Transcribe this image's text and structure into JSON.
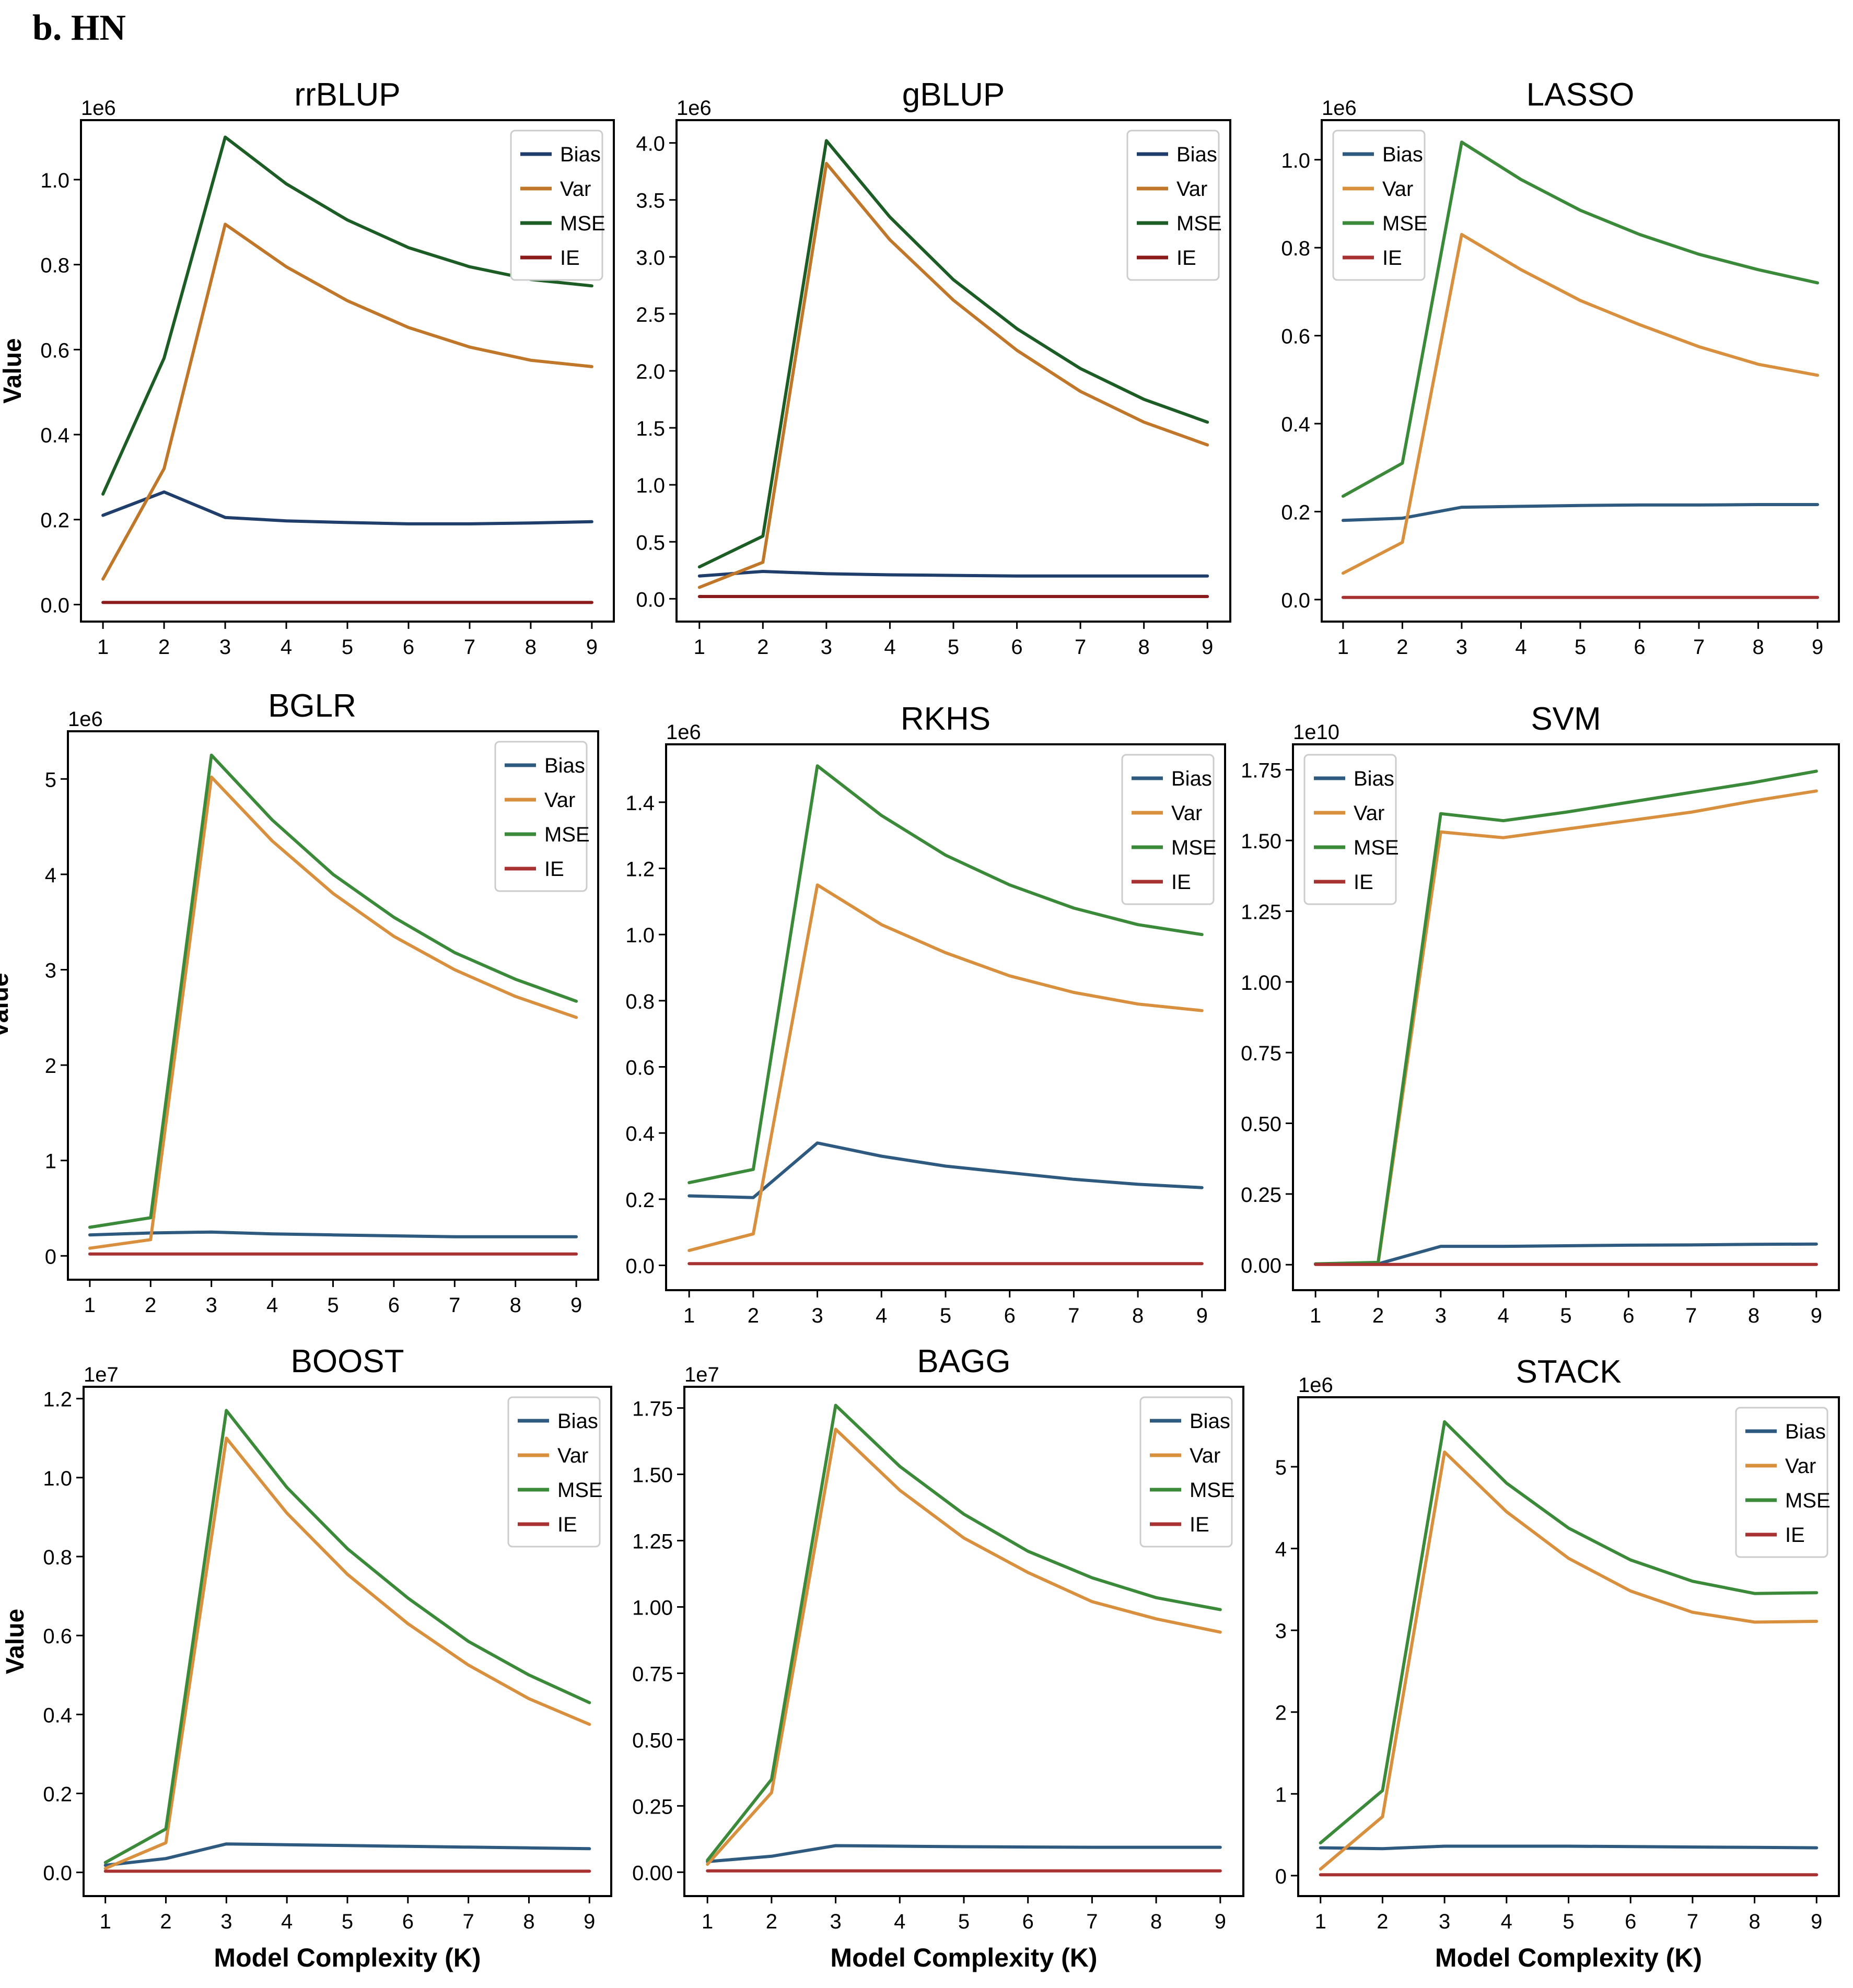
{
  "figure": {
    "label": "b. HN"
  },
  "chart_data": [
    {
      "type": "line",
      "title": "rrBLUP",
      "multiplier": "1e6",
      "ylabel": "Value",
      "xlabel": "",
      "x": [
        1,
        2,
        3,
        4,
        5,
        6,
        7,
        8,
        9
      ],
      "ylim": [
        -0.04,
        1.14
      ],
      "yticks": [
        0.0,
        0.2,
        0.4,
        0.6,
        0.8,
        1.0
      ],
      "legend": "top-right",
      "series": [
        {
          "name": "Bias",
          "color": "#1f3e6b",
          "values": [
            0.21,
            0.265,
            0.205,
            0.197,
            0.193,
            0.19,
            0.19,
            0.192,
            0.195
          ]
        },
        {
          "name": "Var",
          "color": "#c0772a",
          "values": [
            0.06,
            0.32,
            0.895,
            0.795,
            0.715,
            0.652,
            0.606,
            0.575,
            0.56
          ]
        },
        {
          "name": "MSE",
          "color": "#1c5c25",
          "values": [
            0.26,
            0.58,
            1.1,
            0.99,
            0.905,
            0.84,
            0.795,
            0.765,
            0.75
          ]
        },
        {
          "name": "IE",
          "color": "#8b1a1a",
          "values": [
            0.005,
            0.005,
            0.005,
            0.005,
            0.005,
            0.005,
            0.005,
            0.005,
            0.005
          ]
        }
      ]
    },
    {
      "type": "line",
      "title": "gBLUP",
      "multiplier": "1e6",
      "ylabel": "",
      "xlabel": "",
      "x": [
        1,
        2,
        3,
        4,
        5,
        6,
        7,
        8,
        9
      ],
      "ylim": [
        -0.2,
        4.2
      ],
      "yticks": [
        0.0,
        0.5,
        1.0,
        1.5,
        2.0,
        2.5,
        3.0,
        3.5,
        4.0
      ],
      "legend": "top-right",
      "series": [
        {
          "name": "Bias",
          "color": "#1f3e6b",
          "values": [
            0.2,
            0.24,
            0.22,
            0.21,
            0.205,
            0.2,
            0.2,
            0.2,
            0.2
          ]
        },
        {
          "name": "Var",
          "color": "#c0772a",
          "values": [
            0.1,
            0.32,
            3.82,
            3.15,
            2.62,
            2.18,
            1.82,
            1.55,
            1.35
          ]
        },
        {
          "name": "MSE",
          "color": "#1c5c25",
          "values": [
            0.28,
            0.55,
            4.02,
            3.35,
            2.8,
            2.37,
            2.02,
            1.75,
            1.55
          ]
        },
        {
          "name": "IE",
          "color": "#8b1a1a",
          "values": [
            0.02,
            0.02,
            0.02,
            0.02,
            0.02,
            0.02,
            0.02,
            0.02,
            0.02
          ]
        }
      ]
    },
    {
      "type": "line",
      "title": "LASSO",
      "multiplier": "1e6",
      "ylabel": "",
      "xlabel": "",
      "x": [
        1,
        2,
        3,
        4,
        5,
        6,
        7,
        8,
        9
      ],
      "ylim": [
        -0.05,
        1.09
      ],
      "yticks": [
        0.0,
        0.2,
        0.4,
        0.6,
        0.8,
        1.0
      ],
      "legend": "top-left",
      "series": [
        {
          "name": "Bias",
          "color": "#2f5a80",
          "values": [
            0.18,
            0.185,
            0.21,
            0.212,
            0.214,
            0.215,
            0.215,
            0.216,
            0.216
          ]
        },
        {
          "name": "Var",
          "color": "#d9903e",
          "values": [
            0.06,
            0.13,
            0.83,
            0.75,
            0.68,
            0.625,
            0.575,
            0.535,
            0.51
          ]
        },
        {
          "name": "MSE",
          "color": "#3a8a3a",
          "values": [
            0.235,
            0.31,
            1.04,
            0.955,
            0.885,
            0.83,
            0.785,
            0.75,
            0.72
          ]
        },
        {
          "name": "IE",
          "color": "#a83232",
          "values": [
            0.005,
            0.005,
            0.005,
            0.005,
            0.005,
            0.005,
            0.005,
            0.005,
            0.005
          ]
        }
      ]
    },
    {
      "type": "line",
      "title": "BGLR",
      "multiplier": "1e6",
      "ylabel": "Value",
      "xlabel": "",
      "x": [
        1,
        2,
        3,
        4,
        5,
        6,
        7,
        8,
        9
      ],
      "ylim": [
        -0.25,
        5.5
      ],
      "yticks": [
        0,
        1,
        2,
        3,
        4,
        5
      ],
      "legend": "top-right",
      "series": [
        {
          "name": "Bias",
          "color": "#2f5a80",
          "values": [
            0.22,
            0.24,
            0.25,
            0.23,
            0.22,
            0.21,
            0.2,
            0.2,
            0.2
          ]
        },
        {
          "name": "Var",
          "color": "#d9903e",
          "values": [
            0.08,
            0.17,
            5.02,
            4.35,
            3.8,
            3.35,
            3.0,
            2.72,
            2.5
          ]
        },
        {
          "name": "MSE",
          "color": "#3a8a3a",
          "values": [
            0.3,
            0.4,
            5.25,
            4.57,
            4.0,
            3.55,
            3.18,
            2.9,
            2.67
          ]
        },
        {
          "name": "IE",
          "color": "#a83232",
          "values": [
            0.02,
            0.02,
            0.02,
            0.02,
            0.02,
            0.02,
            0.02,
            0.02,
            0.02
          ]
        }
      ]
    },
    {
      "type": "line",
      "title": "RKHS",
      "multiplier": "1e6",
      "ylabel": "",
      "xlabel": "",
      "x": [
        1,
        2,
        3,
        4,
        5,
        6,
        7,
        8,
        9
      ],
      "ylim": [
        -0.075,
        1.575
      ],
      "yticks": [
        0.0,
        0.2,
        0.4,
        0.6,
        0.8,
        1.0,
        1.2,
        1.4
      ],
      "legend": "top-right",
      "series": [
        {
          "name": "Bias",
          "color": "#2f5a80",
          "values": [
            0.21,
            0.205,
            0.37,
            0.33,
            0.3,
            0.28,
            0.26,
            0.245,
            0.235
          ]
        },
        {
          "name": "Var",
          "color": "#d9903e",
          "values": [
            0.045,
            0.095,
            1.15,
            1.03,
            0.945,
            0.875,
            0.825,
            0.79,
            0.77
          ]
        },
        {
          "name": "MSE",
          "color": "#3a8a3a",
          "values": [
            0.25,
            0.29,
            1.51,
            1.36,
            1.24,
            1.15,
            1.08,
            1.03,
            1.0
          ]
        },
        {
          "name": "IE",
          "color": "#a83232",
          "values": [
            0.005,
            0.005,
            0.005,
            0.005,
            0.005,
            0.005,
            0.005,
            0.005,
            0.005
          ]
        }
      ]
    },
    {
      "type": "line",
      "title": "SVM",
      "multiplier": "1e10",
      "ylabel": "",
      "xlabel": "",
      "x": [
        1,
        2,
        3,
        4,
        5,
        6,
        7,
        8,
        9
      ],
      "ylim": [
        -0.09,
        1.84
      ],
      "yticks": [
        0.0,
        0.25,
        0.5,
        0.75,
        1.0,
        1.25,
        1.5,
        1.75
      ],
      "legend": "top-left",
      "series": [
        {
          "name": "Bias",
          "color": "#2f5a80",
          "values": [
            0.003,
            0.003,
            0.065,
            0.065,
            0.067,
            0.069,
            0.07,
            0.072,
            0.073
          ]
        },
        {
          "name": "Var",
          "color": "#d9903e",
          "values": [
            0.003,
            0.005,
            1.53,
            1.51,
            1.54,
            1.57,
            1.6,
            1.64,
            1.675
          ]
        },
        {
          "name": "MSE",
          "color": "#3a8a3a",
          "values": [
            0.003,
            0.008,
            1.595,
            1.57,
            1.6,
            1.635,
            1.67,
            1.705,
            1.745
          ]
        },
        {
          "name": "IE",
          "color": "#a83232",
          "values": [
            0.001,
            0.001,
            0.001,
            0.001,
            0.001,
            0.001,
            0.001,
            0.001,
            0.001
          ]
        }
      ]
    },
    {
      "type": "line",
      "title": "BOOST",
      "multiplier": "1e7",
      "ylabel": "Value",
      "xlabel": "Model Complexity (K)",
      "x": [
        1,
        2,
        3,
        4,
        5,
        6,
        7,
        8,
        9
      ],
      "ylim": [
        -0.06,
        1.23
      ],
      "yticks": [
        0.0,
        0.2,
        0.4,
        0.6,
        0.8,
        1.0,
        1.2
      ],
      "legend": "top-right",
      "series": [
        {
          "name": "Bias",
          "color": "#2f5a80",
          "values": [
            0.018,
            0.035,
            0.072,
            0.07,
            0.068,
            0.066,
            0.064,
            0.062,
            0.06
          ]
        },
        {
          "name": "Var",
          "color": "#d9903e",
          "values": [
            0.01,
            0.075,
            1.1,
            0.91,
            0.755,
            0.63,
            0.525,
            0.44,
            0.375
          ]
        },
        {
          "name": "MSE",
          "color": "#3a8a3a",
          "values": [
            0.025,
            0.11,
            1.17,
            0.975,
            0.82,
            0.695,
            0.585,
            0.5,
            0.43
          ]
        },
        {
          "name": "IE",
          "color": "#a83232",
          "values": [
            0.003,
            0.003,
            0.003,
            0.003,
            0.003,
            0.003,
            0.003,
            0.003,
            0.003
          ]
        }
      ]
    },
    {
      "type": "line",
      "title": "BAGG",
      "multiplier": "1e7",
      "ylabel": "",
      "xlabel": "Model Complexity (K)",
      "x": [
        1,
        2,
        3,
        4,
        5,
        6,
        7,
        8,
        9
      ],
      "ylim": [
        -0.09,
        1.83
      ],
      "yticks": [
        0.0,
        0.25,
        0.5,
        0.75,
        1.0,
        1.25,
        1.5,
        1.75
      ],
      "legend": "top-right",
      "series": [
        {
          "name": "Bias",
          "color": "#2f5a80",
          "values": [
            0.04,
            0.06,
            0.1,
            0.098,
            0.096,
            0.095,
            0.094,
            0.094,
            0.094
          ]
        },
        {
          "name": "Var",
          "color": "#d9903e",
          "values": [
            0.03,
            0.3,
            1.67,
            1.44,
            1.26,
            1.13,
            1.02,
            0.955,
            0.905
          ]
        },
        {
          "name": "MSE",
          "color": "#3a8a3a",
          "values": [
            0.045,
            0.35,
            1.76,
            1.53,
            1.35,
            1.21,
            1.11,
            1.035,
            0.99
          ]
        },
        {
          "name": "IE",
          "color": "#a83232",
          "values": [
            0.005,
            0.005,
            0.005,
            0.005,
            0.005,
            0.005,
            0.005,
            0.005,
            0.005
          ]
        }
      ]
    },
    {
      "type": "line",
      "title": "STACK",
      "multiplier": "1e6",
      "ylabel": "",
      "xlabel": "Model Complexity (K)",
      "x": [
        1,
        2,
        3,
        4,
        5,
        6,
        7,
        8,
        9
      ],
      "ylim": [
        -0.25,
        5.85
      ],
      "yticks": [
        0,
        1,
        2,
        3,
        4,
        5
      ],
      "legend": "top-right",
      "series": [
        {
          "name": "Bias",
          "color": "#2f5a80",
          "values": [
            0.34,
            0.33,
            0.36,
            0.36,
            0.36,
            0.355,
            0.35,
            0.345,
            0.34
          ]
        },
        {
          "name": "Var",
          "color": "#d9903e",
          "values": [
            0.08,
            0.72,
            5.18,
            4.45,
            3.88,
            3.48,
            3.22,
            3.1,
            3.11
          ]
        },
        {
          "name": "MSE",
          "color": "#3a8a3a",
          "values": [
            0.4,
            1.04,
            5.55,
            4.8,
            4.25,
            3.86,
            3.6,
            3.45,
            3.46
          ]
        },
        {
          "name": "IE",
          "color": "#a83232",
          "values": [
            0.01,
            0.01,
            0.01,
            0.01,
            0.01,
            0.01,
            0.01,
            0.01,
            0.01
          ]
        }
      ]
    }
  ]
}
